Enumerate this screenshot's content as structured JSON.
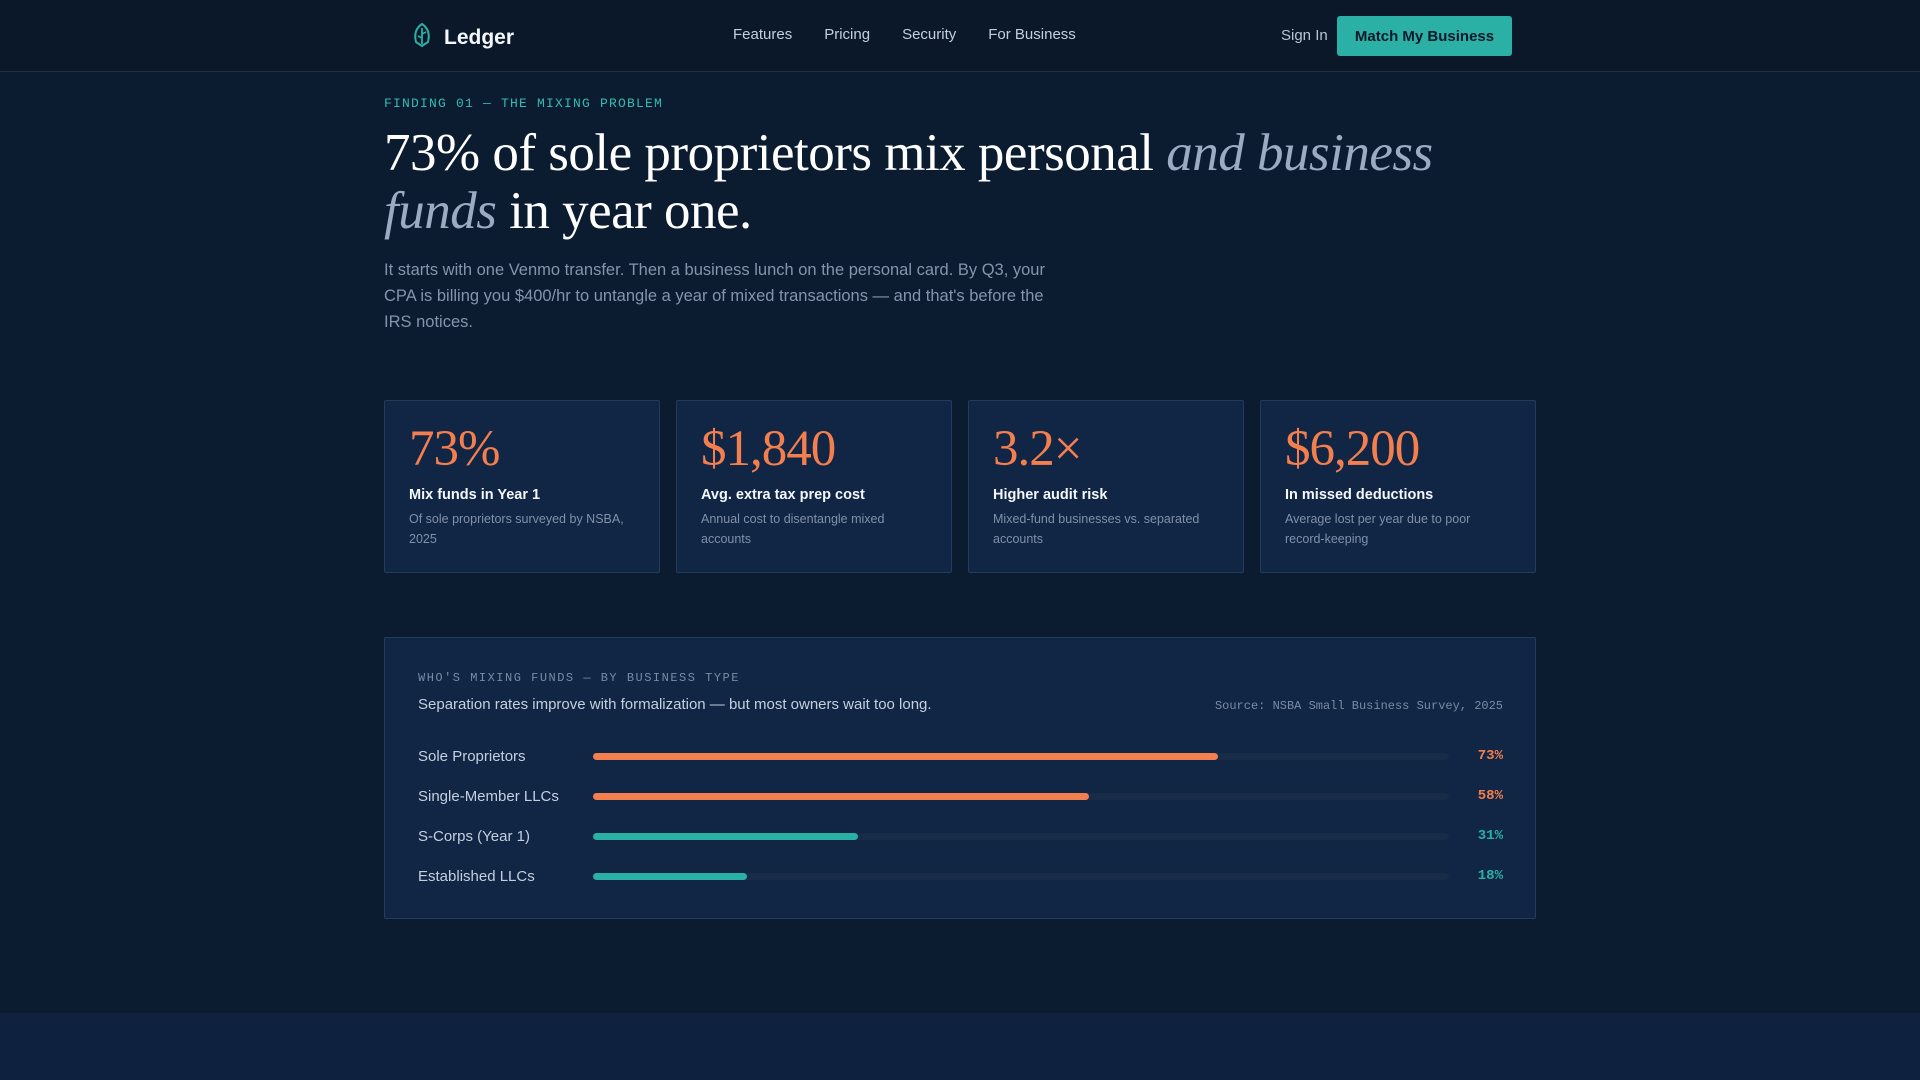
{
  "nav": {
    "brand": "Ledger",
    "links": [
      "Features",
      "Pricing",
      "Security",
      "For Business"
    ],
    "sign_in": "Sign In",
    "cta": "Match My Business"
  },
  "hero": {
    "eyebrow": "FINDING 01 — THE MIXING PROBLEM",
    "headline_main": "73% of sole proprietors mix personal ",
    "headline_accent": "and business funds",
    "headline_end": " in year one.",
    "lede": "It starts with one Venmo transfer. Then a business lunch on the personal card. By Q3, your CPA is billing you $400/hr to untangle a year of mixed transactions — and that's before the IRS notices."
  },
  "stats": [
    {
      "value": "73%",
      "title": "Mix funds in Year 1",
      "desc": "Of sole proprietors surveyed by NSBA, 2025"
    },
    {
      "value": "$1,840",
      "title": "Avg. extra tax prep cost",
      "desc": "Annual cost to disentangle mixed accounts"
    },
    {
      "value": "3.2×",
      "title": "Higher audit risk",
      "desc": "Mixed-fund businesses vs. separated accounts"
    },
    {
      "value": "$6,200",
      "title": "In missed deductions",
      "desc": "Average lost per year due to poor record-keeping"
    }
  ],
  "chart": {
    "kicker": "WHO'S MIXING FUNDS — BY BUSINESS TYPE",
    "title": "Separation rates improve with formalization — but most owners wait too long.",
    "source": "Source: NSBA Small Business Survey, 2025"
  },
  "chart_data": {
    "type": "bar",
    "orientation": "horizontal",
    "categories": [
      "Sole Proprietors",
      "Single-Member LLCs",
      "S-Corps (Year 1)",
      "Established LLCs"
    ],
    "values": [
      73,
      58,
      31,
      18
    ],
    "labels": [
      "73%",
      "58%",
      "31%",
      "18%"
    ],
    "colors": [
      "#f47f4e",
      "#f47f4e",
      "#2bb0a6",
      "#2bb0a6"
    ],
    "xlim": [
      0,
      100
    ],
    "title": "WHO'S MIXING FUNDS — BY BUSINESS TYPE",
    "grid": false
  },
  "colors": {
    "accent_orange": "#f47f4e",
    "accent_teal": "#2bb0a6",
    "background": "#0b1b30"
  },
  "icons": {
    "brand": "leaf-ledger-icon"
  }
}
